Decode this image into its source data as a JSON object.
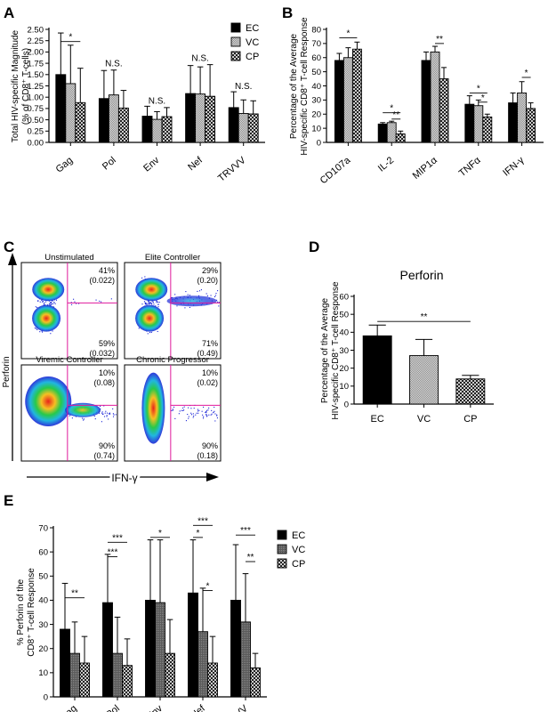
{
  "legend": [
    "EC",
    "VC",
    "CP"
  ],
  "legend_E": [
    "EC",
    "VC",
    "CP"
  ],
  "panels": {
    "A": {
      "letter": "A",
      "ylabel_lines": [
        "Total HIV-specific Magnitude",
        "(% of CD8⁺ T-cells)"
      ],
      "yticks": [
        "0.00",
        "0.25",
        "0.50",
        "0.75",
        "1.00",
        "1.25",
        "1.50",
        "1.75",
        "2.00",
        "2.25",
        "2.50"
      ]
    },
    "B": {
      "letter": "B",
      "ylabel_lines": [
        "Percentage of the Average",
        "HIV-specific CD8⁺ T-cell Response"
      ],
      "yticks": [
        "0",
        "10",
        "20",
        "30",
        "40",
        "50",
        "60",
        "70",
        "80"
      ]
    },
    "C": {
      "letter": "C",
      "quadrants": [
        {
          "title": "Unstimulated",
          "upper_right": "41%",
          "upper_right_sub": "(0.022)",
          "lower_right": "59%",
          "lower_right_sub": "(0.032)"
        },
        {
          "title": "Elite Controller",
          "upper_right": "29%",
          "upper_right_sub": "(0.20)",
          "lower_right": "71%",
          "lower_right_sub": "(0.49)"
        },
        {
          "title": "Viremic Controller",
          "upper_right": "10%",
          "upper_right_sub": "(0.08)",
          "lower_right": "90%",
          "lower_right_sub": "(0.74)"
        },
        {
          "title": "Chronic Progressor",
          "upper_right": "10%",
          "upper_right_sub": "(0.02)",
          "lower_right": "90%",
          "lower_right_sub": "(0.18)"
        }
      ],
      "ylabel": "Perforin",
      "xlabel": "IFN-γ"
    },
    "D": {
      "letter": "D",
      "title": "Perforin",
      "ylabel_lines": [
        "Percentage of the Average",
        "HIV-specific CD8⁺ T-cell Response"
      ],
      "yticks": [
        "0",
        "10",
        "20",
        "30",
        "40",
        "50",
        "60"
      ]
    },
    "E": {
      "letter": "E",
      "ylabel_lines": [
        "% Perforin of the",
        "CD8⁺ T-cell Response"
      ],
      "yticks": [
        "0",
        "10",
        "20",
        "30",
        "40",
        "50",
        "60",
        "70"
      ]
    }
  },
  "chart_data": [
    {
      "panel": "A",
      "type": "bar",
      "categories": [
        "Gag",
        "Pol",
        "Env",
        "Nef",
        "TRVVV"
      ],
      "ylim": [
        0,
        2.5
      ],
      "series": [
        {
          "name": "EC",
          "values": [
            1.5,
            0.97,
            0.58,
            1.08,
            0.77
          ],
          "errors": [
            0.92,
            0.62,
            0.22,
            0.62,
            0.35
          ]
        },
        {
          "name": "VC",
          "values": [
            1.3,
            1.05,
            0.51,
            1.07,
            0.64
          ],
          "errors": [
            0.85,
            0.55,
            0.17,
            0.6,
            0.3
          ]
        },
        {
          "name": "CP",
          "values": [
            0.88,
            0.76,
            0.57,
            1.02,
            0.63
          ],
          "errors": [
            0.76,
            0.39,
            0.2,
            0.7,
            0.29
          ]
        }
      ],
      "significance": [
        {
          "label": "*",
          "category": 0,
          "from": 0,
          "to": 2,
          "y": 2.23
        },
        {
          "label": "N.S.",
          "category": 1,
          "y": 1.68
        },
        {
          "label": "N.S.",
          "category": 2,
          "y": 0.86
        },
        {
          "label": "N.S.",
          "category": 3,
          "y": 1.8
        },
        {
          "label": "N.S.",
          "category": 4,
          "y": 1.18
        }
      ]
    },
    {
      "panel": "B",
      "type": "bar",
      "categories": [
        "CD107a",
        "IL-2",
        "MIP1α",
        "TNFα",
        "IFN-γ"
      ],
      "ylim": [
        0,
        80
      ],
      "series": [
        {
          "name": "EC",
          "values": [
            58,
            13,
            58,
            27,
            28
          ],
          "errors": [
            5,
            1,
            6,
            6,
            7
          ]
        },
        {
          "name": "VC",
          "values": [
            60,
            14,
            64,
            26,
            35
          ],
          "errors": [
            7,
            1,
            4,
            4,
            8
          ]
        },
        {
          "name": "CP",
          "values": [
            66,
            6,
            45,
            18,
            24
          ],
          "errors": [
            5,
            2,
            8,
            2,
            4
          ]
        }
      ],
      "significance": [
        {
          "label": "*",
          "category": 0,
          "from": 0,
          "to": 2,
          "y": 74
        },
        {
          "label": "*",
          "category": 1,
          "from": 0,
          "to": 2,
          "y": 21
        },
        {
          "label": "**",
          "category": 1,
          "from": 1,
          "to": 2,
          "y": 16.5
        },
        {
          "label": "**",
          "category": 2,
          "from": 1,
          "to": 2,
          "y": 70
        },
        {
          "label": "*",
          "category": 3,
          "from": 0,
          "to": 2,
          "y": 35
        },
        {
          "label": "*",
          "category": 3,
          "from": 1,
          "to": 2,
          "y": 28.5
        },
        {
          "label": "*",
          "category": 4,
          "from": 1,
          "to": 2,
          "y": 46
        }
      ]
    },
    {
      "panel": "D",
      "type": "bar",
      "categories": [
        "EC",
        "VC",
        "CP"
      ],
      "ylim": [
        0,
        60
      ],
      "values": [
        38,
        27,
        14
      ],
      "errors": [
        6,
        9,
        2
      ],
      "significance": [
        {
          "label": "**",
          "from": 0,
          "to": 2,
          "y": 46
        }
      ]
    },
    {
      "panel": "E",
      "type": "bar",
      "categories": [
        "Gag",
        "Pol",
        "Env",
        "Nef",
        "TRVVV"
      ],
      "ylim": [
        0,
        70
      ],
      "series": [
        {
          "name": "EC",
          "values": [
            28,
            39,
            40,
            43,
            40
          ],
          "errors": [
            19,
            20,
            25,
            22,
            23
          ]
        },
        {
          "name": "VC",
          "values": [
            18,
            18,
            39,
            27,
            31
          ],
          "errors": [
            13,
            15,
            26,
            18,
            20
          ]
        },
        {
          "name": "CP",
          "values": [
            14,
            13,
            18,
            14,
            12
          ],
          "errors": [
            11,
            11,
            14,
            11,
            6
          ]
        }
      ],
      "significance": [
        {
          "label": "**",
          "category": 0,
          "from": 0,
          "to": 2,
          "y": 41
        },
        {
          "label": "***",
          "category": 1,
          "from": 0,
          "to": 2,
          "y": 64
        },
        {
          "label": "***",
          "category": 1,
          "from": 0,
          "to": 1,
          "y": 58
        },
        {
          "label": "*",
          "category": 2,
          "from": 0,
          "to": 2,
          "y": 66
        },
        {
          "label": "***",
          "category": 3,
          "from": 0,
          "to": 2,
          "y": 71
        },
        {
          "label": "*",
          "category": 3,
          "from": 0,
          "to": 1,
          "y": 66
        },
        {
          "label": "*",
          "category": 3,
          "from": 1,
          "to": 2,
          "y": 44
        },
        {
          "label": "***",
          "category": 4,
          "from": 0,
          "to": 2,
          "y": 67
        },
        {
          "label": "**",
          "category": 4,
          "from": 1,
          "to": 2,
          "y": 56
        }
      ]
    }
  ]
}
